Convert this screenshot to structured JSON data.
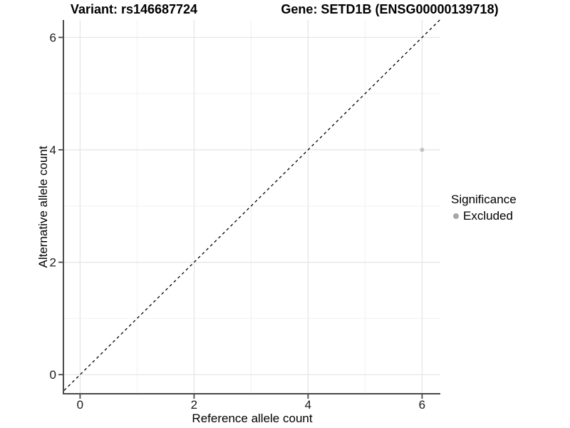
{
  "figure": {
    "title_left": "Variant: rs146687724",
    "title_right": "Gene: SETD1B (ENSG00000139718)"
  },
  "chart_data": {
    "type": "scatter",
    "title": "Variant: rs146687724 / Gene: SETD1B (ENSG00000139718)",
    "xlabel": "Reference allele count",
    "ylabel": "Alternative allele count",
    "xlim": [
      -0.28,
      6.32
    ],
    "ylim": [
      -0.34,
      6.31
    ],
    "x_ticks": [
      0,
      2,
      4,
      6
    ],
    "y_ticks": [
      0,
      2,
      4,
      6
    ],
    "x_minor_ticks": [
      1,
      3,
      5
    ],
    "y_minor_ticks": [
      1,
      3,
      5
    ],
    "grid": "major+minor",
    "points": [
      {
        "x": 6,
        "y": 4,
        "series": "Excluded"
      }
    ],
    "reference_line": {
      "type": "identity",
      "slope": 1,
      "intercept": 0,
      "style": "dashed",
      "color": "#000000"
    },
    "legend": {
      "title": "Significance",
      "position": "right",
      "items": [
        {
          "label": "Excluded",
          "color": "#a6a6a6"
        }
      ]
    },
    "colors": {
      "point": "#c2c2c2",
      "grid_major": "#e4e4e4",
      "grid_minor": "#f1f1f1",
      "axis": "#4a4a4a",
      "tick_label": "#1a1a1a",
      "background": "#ffffff"
    }
  }
}
